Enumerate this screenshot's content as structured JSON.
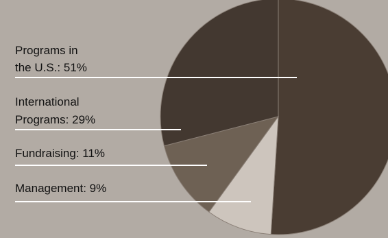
{
  "chart_data": {
    "type": "pie",
    "title": "",
    "slices": [
      {
        "label_lines": [
          "Programs in",
          "the U.S.: 51%"
        ],
        "category": "Programs in the U.S.",
        "value": 51,
        "color": "#4a3d33"
      },
      {
        "label_lines": [
          "International",
          "Programs: 29%"
        ],
        "category": "International Programs",
        "value": 29,
        "color": "#433830"
      },
      {
        "label_lines": [
          "Fundraising: 11%"
        ],
        "category": "Fundraising",
        "value": 11,
        "color": "#6e6154"
      },
      {
        "label_lines": [
          "Management: 9%"
        ],
        "category": "Management",
        "value": 9,
        "color": "#cdc5bd"
      }
    ],
    "legend": "left",
    "background": "#b2aba4",
    "separator_color": "#8a7f76",
    "leader_color": "#ffffff"
  }
}
